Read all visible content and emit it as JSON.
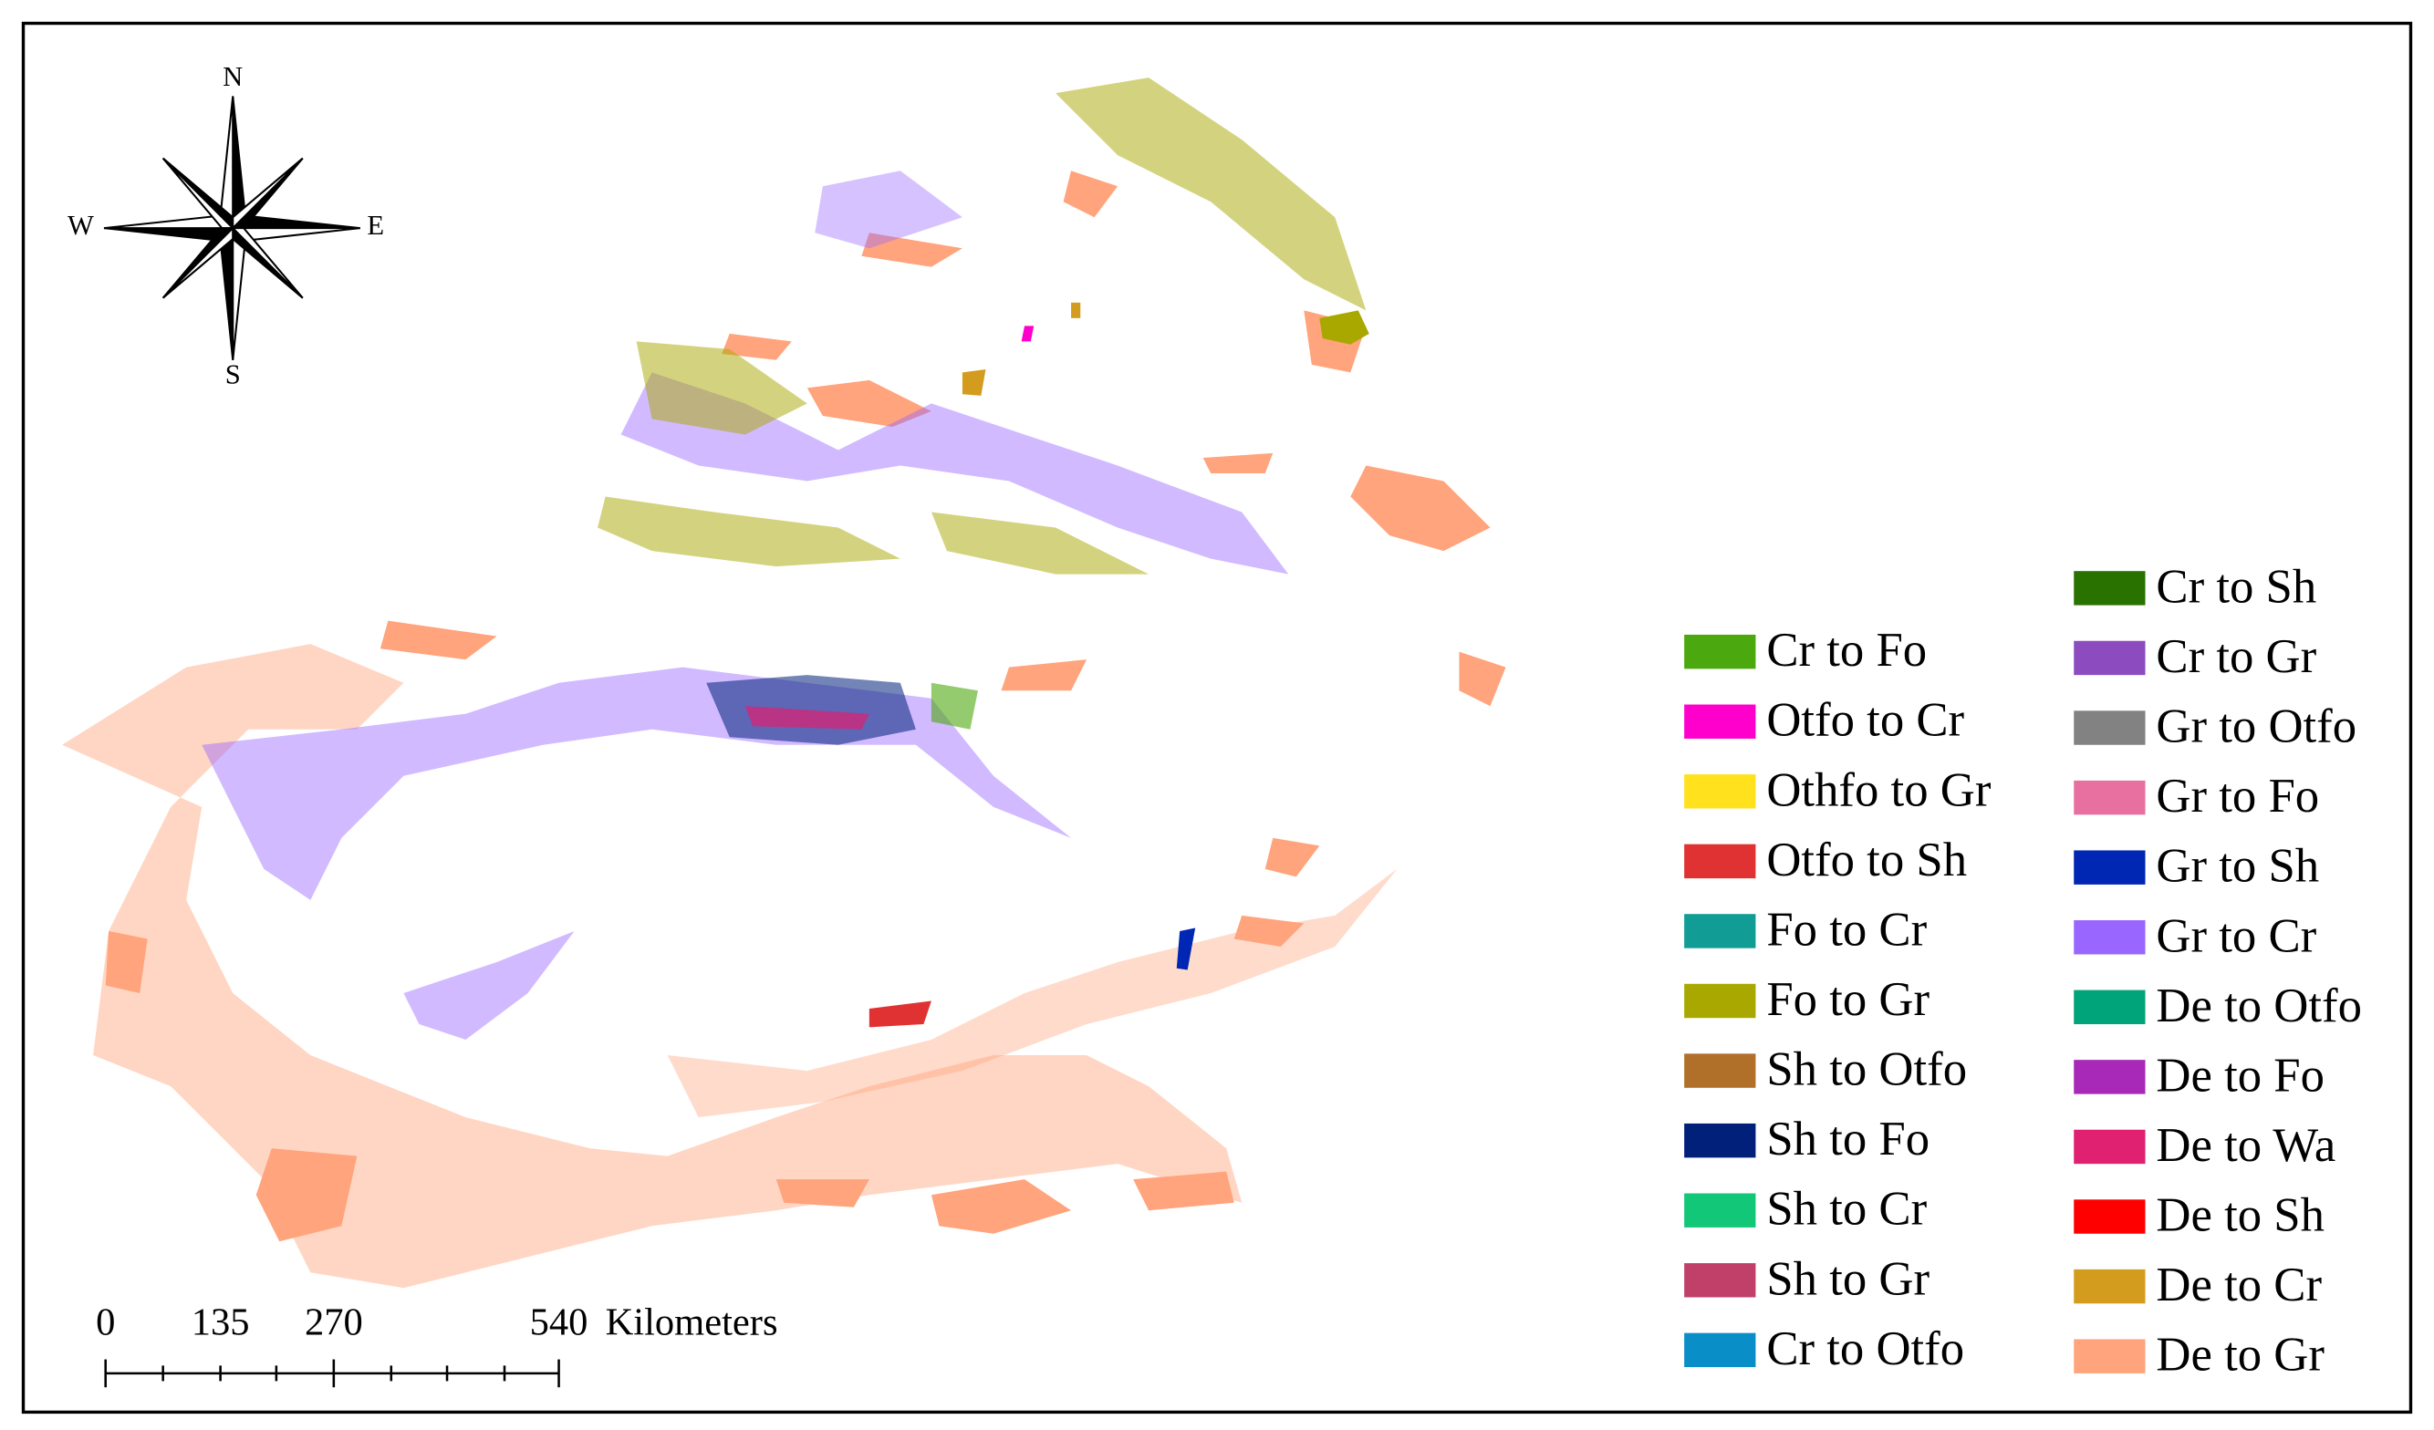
{
  "compass": {
    "north": "N",
    "south": "S",
    "west": "W",
    "east": "E"
  },
  "scale_bar": {
    "labels": [
      "0",
      "135",
      "270",
      "540"
    ],
    "unit": "Kilometers"
  },
  "legend": {
    "columns": [
      [
        {
          "name": "Cr to Fo",
          "color": "#4ca80f"
        },
        {
          "name": "Otfo to Cr",
          "color": "#ff00cc"
        },
        {
          "name": "Othfo to Gr",
          "color": "#ffe11e"
        },
        {
          "name": "Otfo to Sh",
          "color": "#e03232"
        },
        {
          "name": "Fo to Cr",
          "color": "#119c96"
        },
        {
          "name": "Fo to Gr",
          "color": "#a8a800"
        },
        {
          "name": "Sh to Otfo",
          "color": "#b0702a"
        },
        {
          "name": "Sh to Fo",
          "color": "#00207a"
        },
        {
          "name": "Sh to Cr",
          "color": "#12c878"
        },
        {
          "name": "Sh to Gr",
          "color": "#c0406a"
        },
        {
          "name": "Cr to Otfo",
          "color": "#0a8ec8"
        }
      ],
      [
        {
          "name": "Cr to Sh",
          "color": "#2a7200"
        },
        {
          "name": "Cr to Gr",
          "color": "#8c4cc0"
        },
        {
          "name": "Gr to Otfo",
          "color": "#828282"
        },
        {
          "name": "Gr to Fo",
          "color": "#e870a0"
        },
        {
          "name": "Gr to Sh",
          "color": "#0026b4"
        },
        {
          "name": "Gr to Cr",
          "color": "#9966ff"
        },
        {
          "name": "De to Otfo",
          "color": "#00a47a"
        },
        {
          "name": "De to Fo",
          "color": "#a828b8"
        },
        {
          "name": "De to Wa",
          "color": "#e02070"
        },
        {
          "name": "De to Sh",
          "color": "#ff0000"
        },
        {
          "name": "De to Cr",
          "color": "#d49c1e"
        },
        {
          "name": "De to Gr",
          "color": "#ffa47c"
        }
      ]
    ]
  }
}
